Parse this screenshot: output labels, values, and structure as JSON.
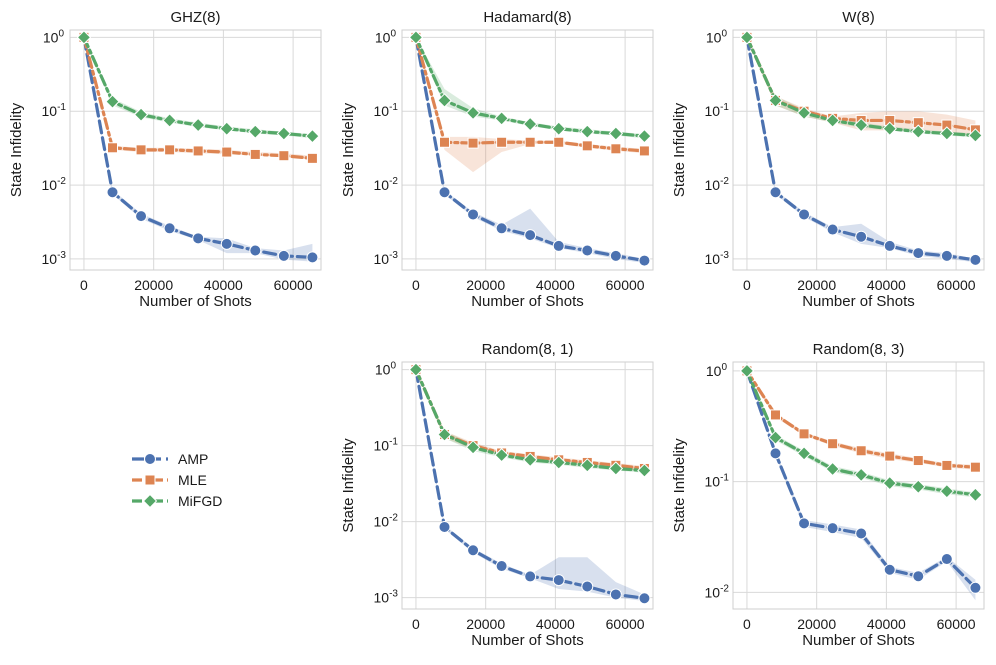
{
  "colors": {
    "AMP": "#4c72b0",
    "MLE": "#dd8452",
    "MiFGD": "#55a868",
    "grid": "#d9d9d9",
    "frame": "#cfcfcf"
  },
  "legend": {
    "placement": "left, beside bottom row",
    "items": [
      {
        "name": "AMP",
        "marker": "circle",
        "color": "#4c72b0"
      },
      {
        "name": "MLE",
        "marker": "square",
        "color": "#dd8452"
      },
      {
        "name": "MiFGD",
        "marker": "diamond",
        "color": "#55a868"
      }
    ]
  },
  "chart_data": [
    {
      "type": "line",
      "title": "GHZ(8)",
      "xlabel": "Number of Shots",
      "ylabel": "State Infidelity",
      "xscale": "linear",
      "yscale": "log",
      "xlim": [
        -4000,
        68000
      ],
      "ylim_exp": [
        -3.15,
        0.1
      ],
      "xticks": [
        "0",
        "20000",
        "40000",
        "60000"
      ],
      "yticks": [
        "10^0",
        "10^-1",
        "10^-2",
        "10^-3"
      ],
      "grid": true,
      "x": [
        0,
        8192,
        16384,
        24576,
        32768,
        40960,
        49152,
        57344,
        65536
      ],
      "series": [
        {
          "name": "AMP",
          "values": [
            1.0,
            0.008,
            0.0038,
            0.0026,
            0.0019,
            0.0016,
            0.0013,
            0.0011,
            0.00105
          ],
          "band_low": [
            1.0,
            0.0075,
            0.0035,
            0.0024,
            0.0018,
            0.0012,
            0.0012,
            0.00098,
            0.00092
          ],
          "band_high": [
            1.0,
            0.0086,
            0.0041,
            0.0028,
            0.002,
            0.0019,
            0.0014,
            0.0013,
            0.0016
          ]
        },
        {
          "name": "MLE",
          "values": [
            1.0,
            0.032,
            0.03,
            0.03,
            0.029,
            0.028,
            0.026,
            0.025,
            0.023
          ],
          "band_low": [
            1.0,
            0.03,
            0.028,
            0.028,
            0.027,
            0.026,
            0.025,
            0.024,
            0.022
          ],
          "band_high": [
            1.0,
            0.034,
            0.032,
            0.032,
            0.031,
            0.03,
            0.028,
            0.027,
            0.025
          ]
        },
        {
          "name": "MiFGD",
          "values": [
            1.0,
            0.135,
            0.09,
            0.075,
            0.065,
            0.058,
            0.053,
            0.05,
            0.046
          ],
          "band_low": [
            1.0,
            0.12,
            0.083,
            0.07,
            0.061,
            0.055,
            0.05,
            0.047,
            0.043
          ],
          "band_high": [
            1.0,
            0.15,
            0.098,
            0.08,
            0.07,
            0.062,
            0.057,
            0.053,
            0.049
          ]
        }
      ]
    },
    {
      "type": "line",
      "title": "Hadamard(8)",
      "xlabel": "Number of Shots",
      "ylabel": "State Infidelity",
      "xscale": "linear",
      "yscale": "log",
      "xlim": [
        -4000,
        68000
      ],
      "ylim_exp": [
        -3.15,
        0.1
      ],
      "xticks": [
        "0",
        "20000",
        "40000",
        "60000"
      ],
      "yticks": [
        "10^0",
        "10^-1",
        "10^-2",
        "10^-3"
      ],
      "grid": true,
      "x": [
        0,
        8192,
        16384,
        24576,
        32768,
        40960,
        49152,
        57344,
        65536
      ],
      "series": [
        {
          "name": "AMP",
          "values": [
            1.0,
            0.008,
            0.004,
            0.0026,
            0.0021,
            0.0015,
            0.0013,
            0.0011,
            0.00095
          ],
          "band_low": [
            1.0,
            0.0075,
            0.0037,
            0.0024,
            0.0019,
            0.0014,
            0.0012,
            0.001,
            0.00088
          ],
          "band_high": [
            1.0,
            0.0085,
            0.0043,
            0.0029,
            0.0048,
            0.0017,
            0.0014,
            0.0012,
            0.001
          ]
        },
        {
          "name": "MLE",
          "values": [
            1.0,
            0.038,
            0.037,
            0.038,
            0.038,
            0.038,
            0.034,
            0.031,
            0.029
          ],
          "band_low": [
            1.0,
            0.03,
            0.015,
            0.028,
            0.036,
            0.036,
            0.032,
            0.029,
            0.027
          ],
          "band_high": [
            1.0,
            0.045,
            0.045,
            0.042,
            0.04,
            0.04,
            0.036,
            0.033,
            0.031
          ]
        },
        {
          "name": "MiFGD",
          "values": [
            1.0,
            0.14,
            0.095,
            0.08,
            0.067,
            0.058,
            0.053,
            0.05,
            0.046
          ],
          "band_low": [
            1.0,
            0.12,
            0.085,
            0.075,
            0.063,
            0.055,
            0.05,
            0.047,
            0.043
          ],
          "band_high": [
            1.0,
            0.2,
            0.11,
            0.085,
            0.071,
            0.062,
            0.057,
            0.053,
            0.049
          ]
        }
      ]
    },
    {
      "type": "line",
      "title": "W(8)",
      "xlabel": "Number of Shots",
      "ylabel": "State Infidelity",
      "xscale": "linear",
      "yscale": "log",
      "xlim": [
        -4000,
        68000
      ],
      "ylim_exp": [
        -3.15,
        0.1
      ],
      "xticks": [
        "0",
        "20000",
        "40000",
        "60000"
      ],
      "yticks": [
        "10^0",
        "10^-1",
        "10^-2",
        "10^-3"
      ],
      "grid": true,
      "x": [
        0,
        8192,
        16384,
        24576,
        32768,
        40960,
        49152,
        57344,
        65536
      ],
      "series": [
        {
          "name": "AMP",
          "values": [
            1.0,
            0.008,
            0.004,
            0.0025,
            0.002,
            0.0015,
            0.0012,
            0.0011,
            0.00097
          ],
          "band_low": [
            1.0,
            0.0075,
            0.0037,
            0.0023,
            0.0016,
            0.0014,
            0.0011,
            0.001,
            0.0009
          ],
          "band_high": [
            1.0,
            0.0085,
            0.0043,
            0.0027,
            0.003,
            0.0017,
            0.0013,
            0.0012,
            0.001
          ]
        },
        {
          "name": "MLE",
          "values": [
            1.0,
            0.14,
            0.1,
            0.08,
            0.075,
            0.075,
            0.07,
            0.065,
            0.056
          ],
          "band_low": [
            1.0,
            0.12,
            0.085,
            0.07,
            0.055,
            0.055,
            0.055,
            0.052,
            0.047
          ],
          "band_high": [
            1.0,
            0.16,
            0.11,
            0.085,
            0.095,
            0.1,
            0.1,
            0.09,
            0.075
          ]
        },
        {
          "name": "MiFGD",
          "values": [
            1.0,
            0.14,
            0.095,
            0.075,
            0.065,
            0.058,
            0.053,
            0.05,
            0.047
          ],
          "band_low": [
            1.0,
            0.12,
            0.085,
            0.07,
            0.06,
            0.055,
            0.05,
            0.047,
            0.044
          ],
          "band_high": [
            1.0,
            0.16,
            0.105,
            0.08,
            0.07,
            0.062,
            0.057,
            0.053,
            0.05
          ]
        }
      ]
    },
    {
      "type": "line",
      "title": "Random(8, 1)",
      "xlabel": "Number of Shots",
      "ylabel": "State Infidelity",
      "xscale": "linear",
      "yscale": "log",
      "xlim": [
        -4000,
        68000
      ],
      "ylim_exp": [
        -3.15,
        0.1
      ],
      "xticks": [
        "0",
        "20000",
        "40000",
        "60000"
      ],
      "yticks": [
        "10^0",
        "10^-1",
        "10^-2",
        "10^-3"
      ],
      "grid": true,
      "x": [
        0,
        8192,
        16384,
        24576,
        32768,
        40960,
        49152,
        57344,
        65536
      ],
      "series": [
        {
          "name": "AMP",
          "values": [
            1.0,
            0.0085,
            0.0042,
            0.0026,
            0.0019,
            0.0017,
            0.0014,
            0.0011,
            0.00098
          ],
          "band_low": [
            1.0,
            0.008,
            0.0039,
            0.0024,
            0.0018,
            0.0013,
            0.0012,
            0.001,
            0.0009
          ],
          "band_high": [
            1.0,
            0.009,
            0.0045,
            0.0028,
            0.002,
            0.0034,
            0.0034,
            0.0016,
            0.0011
          ]
        },
        {
          "name": "MLE",
          "values": [
            1.0,
            0.14,
            0.1,
            0.08,
            0.072,
            0.065,
            0.06,
            0.055,
            0.05
          ],
          "band_low": [
            1.0,
            0.125,
            0.09,
            0.075,
            0.067,
            0.06,
            0.056,
            0.051,
            0.046
          ],
          "band_high": [
            1.0,
            0.155,
            0.11,
            0.085,
            0.077,
            0.07,
            0.064,
            0.059,
            0.054
          ]
        },
        {
          "name": "MiFGD",
          "values": [
            1.0,
            0.14,
            0.095,
            0.075,
            0.065,
            0.06,
            0.055,
            0.05,
            0.047
          ],
          "band_low": [
            1.0,
            0.125,
            0.085,
            0.07,
            0.06,
            0.056,
            0.051,
            0.047,
            0.044
          ],
          "band_high": [
            1.0,
            0.155,
            0.105,
            0.08,
            0.07,
            0.064,
            0.059,
            0.053,
            0.05
          ]
        }
      ]
    },
    {
      "type": "line",
      "title": "Random(8, 3)",
      "xlabel": "Number of Shots",
      "ylabel": "State Infidelity",
      "xscale": "linear",
      "yscale": "log",
      "xlim": [
        -4000,
        68000
      ],
      "ylim_exp": [
        -2.15,
        0.08
      ],
      "xticks": [
        "0",
        "20000",
        "40000",
        "60000"
      ],
      "yticks": [
        "10^0",
        "10^-1",
        "10^-2"
      ],
      "grid": true,
      "x": [
        0,
        8192,
        16384,
        24576,
        32768,
        40960,
        49152,
        57344,
        65536
      ],
      "series": [
        {
          "name": "AMP",
          "values": [
            1.0,
            0.18,
            0.042,
            0.038,
            0.034,
            0.016,
            0.014,
            0.02,
            0.011
          ],
          "band_low": [
            1.0,
            0.17,
            0.039,
            0.035,
            0.031,
            0.015,
            0.013,
            0.019,
            0.0085
          ],
          "band_high": [
            1.0,
            0.19,
            0.045,
            0.041,
            0.037,
            0.017,
            0.015,
            0.021,
            0.013
          ]
        },
        {
          "name": "MLE",
          "values": [
            1.0,
            0.4,
            0.27,
            0.22,
            0.19,
            0.17,
            0.155,
            0.14,
            0.135
          ],
          "band_low": [
            1.0,
            0.38,
            0.26,
            0.21,
            0.18,
            0.16,
            0.148,
            0.134,
            0.128
          ],
          "band_high": [
            1.0,
            0.42,
            0.28,
            0.23,
            0.2,
            0.18,
            0.162,
            0.146,
            0.142
          ]
        },
        {
          "name": "MiFGD",
          "values": [
            1.0,
            0.25,
            0.18,
            0.13,
            0.115,
            0.097,
            0.09,
            0.082,
            0.076
          ],
          "band_low": [
            1.0,
            0.235,
            0.17,
            0.122,
            0.108,
            0.091,
            0.085,
            0.077,
            0.072
          ],
          "band_high": [
            1.0,
            0.265,
            0.19,
            0.138,
            0.122,
            0.103,
            0.095,
            0.087,
            0.08
          ]
        }
      ]
    }
  ]
}
